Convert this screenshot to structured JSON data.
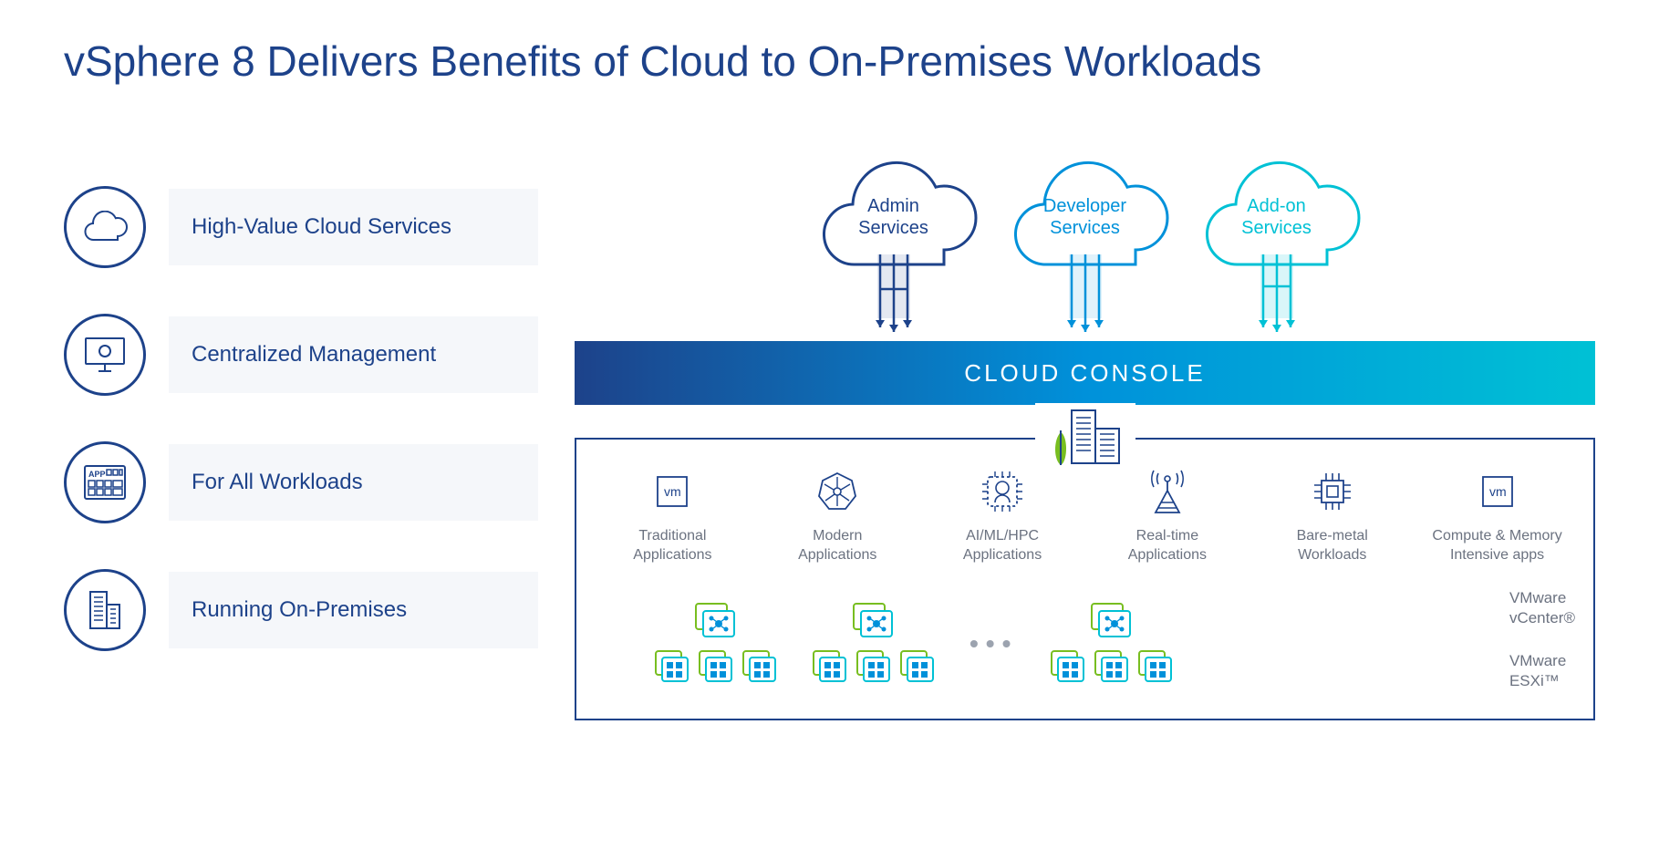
{
  "title": "vSphere 8 Delivers Benefits of Cloud to On-Premises Workloads",
  "colors": {
    "primary_navy": "#1d428a",
    "sky_blue": "#0091da",
    "teal": "#00c1d5",
    "light_bg": "#f5f7fa",
    "muted_text": "#6b7280",
    "green_accent": "#78be20"
  },
  "benefits": [
    {
      "label": "High-Value Cloud Services",
      "icon": "cloud"
    },
    {
      "label": "Centralized Management",
      "icon": "monitor"
    },
    {
      "label": "For All Workloads",
      "icon": "app"
    },
    {
      "label": "Running On-Premises",
      "icon": "building"
    }
  ],
  "clouds": [
    {
      "line1": "Admin",
      "line2": "Services",
      "stroke": "#1d428a",
      "text_color": "#1d428a"
    },
    {
      "line1": "Developer",
      "line2": "Services",
      "stroke": "#0091da",
      "text_color": "#0091da"
    },
    {
      "line1": "Add-on",
      "line2": "Services",
      "stroke": "#00c1d5",
      "text_color": "#00c1d5"
    }
  ],
  "console_label": "CLOUD CONSOLE",
  "workloads": [
    {
      "label": "Traditional Applications",
      "icon": "vm"
    },
    {
      "label": "Modern Applications",
      "icon": "k8s"
    },
    {
      "label": "AI/ML/HPC Applications",
      "icon": "aiml"
    },
    {
      "label": "Real-time Applications",
      "icon": "antenna"
    },
    {
      "label": "Bare-metal Workloads",
      "icon": "chip"
    },
    {
      "label": "Compute & Memory Intensive apps",
      "icon": "vm"
    }
  ],
  "infra_clusters": 3,
  "infra_dots": true,
  "infra_labels": {
    "vcenter": "VMware vCenter®",
    "esxi": "VMware ESXi™"
  }
}
